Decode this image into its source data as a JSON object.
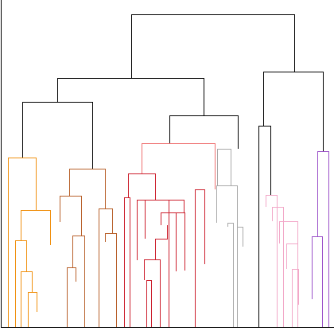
{
  "chart_data": {
    "type": "dendrogram",
    "orientation": "top-down",
    "leaf_labels_shown": false,
    "axes": {
      "left_spine": true,
      "bottom_spine": true,
      "ticks_shown": false
    },
    "colors": {
      "above_threshold": "#000000",
      "clusters": [
        "#f0900f",
        "#b8602a",
        "#cc1e2c",
        "#ef6f6f",
        "#a8a8a8",
        "#f2a8c8",
        "#9a4fc8"
      ]
    }
  }
}
